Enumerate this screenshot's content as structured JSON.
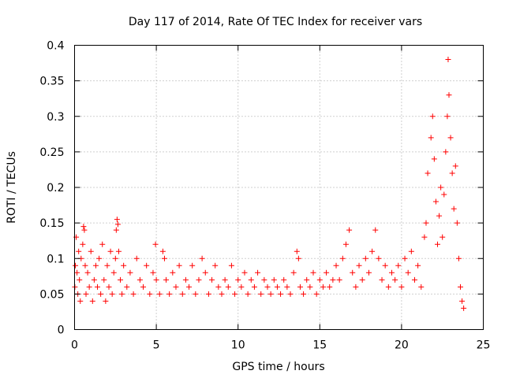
{
  "chart_data": {
    "type": "scatter",
    "title": "Day 117 of 2014, Rate Of TEC Index for receiver vars",
    "xlabel": "GPS time / hours",
    "ylabel": "ROTI / TECUs",
    "xlim": [
      0,
      25
    ],
    "ylim": [
      0,
      0.4
    ],
    "xticks": [
      0,
      5,
      10,
      15,
      20,
      25
    ],
    "xtick_labels": [
      "0",
      "5",
      "10",
      "15",
      "20",
      "25"
    ],
    "yticks": [
      0,
      0.05,
      0.1,
      0.15,
      0.2,
      0.25,
      0.3,
      0.35,
      0.4
    ],
    "ytick_labels": [
      "0",
      "0.05",
      "0.1",
      "0.15",
      "0.2",
      "0.25",
      "0.3",
      "0.35",
      "0.4"
    ],
    "grid": true,
    "marker": "+",
    "marker_color": "#ff0000",
    "series": [
      {
        "name": "ROTI",
        "points": [
          [
            0.02,
            0.06
          ],
          [
            0.05,
            0.09
          ],
          [
            0.1,
            0.13
          ],
          [
            0.15,
            0.08
          ],
          [
            0.2,
            0.05
          ],
          [
            0.25,
            0.11
          ],
          [
            0.3,
            0.07
          ],
          [
            0.35,
            0.04
          ],
          [
            0.4,
            0.1
          ],
          [
            0.5,
            0.12
          ],
          [
            0.55,
            0.145
          ],
          [
            0.6,
            0.14
          ],
          [
            0.65,
            0.09
          ],
          [
            0.7,
            0.05
          ],
          [
            0.8,
            0.08
          ],
          [
            0.9,
            0.06
          ],
          [
            1.0,
            0.11
          ],
          [
            1.1,
            0.04
          ],
          [
            1.2,
            0.07
          ],
          [
            1.3,
            0.09
          ],
          [
            1.4,
            0.06
          ],
          [
            1.5,
            0.1
          ],
          [
            1.6,
            0.05
          ],
          [
            1.7,
            0.12
          ],
          [
            1.8,
            0.07
          ],
          [
            1.9,
            0.04
          ],
          [
            2.0,
            0.09
          ],
          [
            2.1,
            0.06
          ],
          [
            2.2,
            0.11
          ],
          [
            2.3,
            0.05
          ],
          [
            2.4,
            0.08
          ],
          [
            2.5,
            0.1
          ],
          [
            2.55,
            0.14
          ],
          [
            2.6,
            0.155
          ],
          [
            2.65,
            0.148
          ],
          [
            2.7,
            0.11
          ],
          [
            2.8,
            0.07
          ],
          [
            2.9,
            0.05
          ],
          [
            3.0,
            0.09
          ],
          [
            3.2,
            0.06
          ],
          [
            3.4,
            0.08
          ],
          [
            3.6,
            0.05
          ],
          [
            3.8,
            0.1
          ],
          [
            4.0,
            0.07
          ],
          [
            4.2,
            0.06
          ],
          [
            4.4,
            0.09
          ],
          [
            4.6,
            0.05
          ],
          [
            4.8,
            0.08
          ],
          [
            4.95,
            0.12
          ],
          [
            5.0,
            0.07
          ],
          [
            5.2,
            0.05
          ],
          [
            5.4,
            0.11
          ],
          [
            5.5,
            0.1
          ],
          [
            5.6,
            0.07
          ],
          [
            5.8,
            0.05
          ],
          [
            6.0,
            0.08
          ],
          [
            6.2,
            0.06
          ],
          [
            6.4,
            0.09
          ],
          [
            6.6,
            0.05
          ],
          [
            6.8,
            0.07
          ],
          [
            7.0,
            0.06
          ],
          [
            7.2,
            0.09
          ],
          [
            7.4,
            0.05
          ],
          [
            7.6,
            0.07
          ],
          [
            7.8,
            0.1
          ],
          [
            8.0,
            0.08
          ],
          [
            8.2,
            0.05
          ],
          [
            8.4,
            0.07
          ],
          [
            8.6,
            0.09
          ],
          [
            8.8,
            0.06
          ],
          [
            9.0,
            0.05
          ],
          [
            9.2,
            0.07
          ],
          [
            9.4,
            0.06
          ],
          [
            9.6,
            0.09
          ],
          [
            9.8,
            0.05
          ],
          [
            10.0,
            0.07
          ],
          [
            10.2,
            0.06
          ],
          [
            10.4,
            0.08
          ],
          [
            10.6,
            0.05
          ],
          [
            10.8,
            0.07
          ],
          [
            11.0,
            0.06
          ],
          [
            11.2,
            0.08
          ],
          [
            11.4,
            0.05
          ],
          [
            11.6,
            0.07
          ],
          [
            11.8,
            0.06
          ],
          [
            12.0,
            0.05
          ],
          [
            12.2,
            0.07
          ],
          [
            12.4,
            0.06
          ],
          [
            12.6,
            0.05
          ],
          [
            12.8,
            0.07
          ],
          [
            13.0,
            0.06
          ],
          [
            13.2,
            0.05
          ],
          [
            13.4,
            0.08
          ],
          [
            13.6,
            0.11
          ],
          [
            13.7,
            0.1
          ],
          [
            13.8,
            0.06
          ],
          [
            14.0,
            0.05
          ],
          [
            14.2,
            0.07
          ],
          [
            14.4,
            0.06
          ],
          [
            14.6,
            0.08
          ],
          [
            14.8,
            0.05
          ],
          [
            15.0,
            0.07
          ],
          [
            15.2,
            0.06
          ],
          [
            15.4,
            0.08
          ],
          [
            15.6,
            0.06
          ],
          [
            15.8,
            0.07
          ],
          [
            16.0,
            0.09
          ],
          [
            16.2,
            0.07
          ],
          [
            16.4,
            0.1
          ],
          [
            16.6,
            0.12
          ],
          [
            16.8,
            0.14
          ],
          [
            17.0,
            0.08
          ],
          [
            17.2,
            0.06
          ],
          [
            17.4,
            0.09
          ],
          [
            17.6,
            0.07
          ],
          [
            17.8,
            0.1
          ],
          [
            18.0,
            0.08
          ],
          [
            18.2,
            0.11
          ],
          [
            18.4,
            0.14
          ],
          [
            18.6,
            0.1
          ],
          [
            18.8,
            0.07
          ],
          [
            19.0,
            0.09
          ],
          [
            19.2,
            0.06
          ],
          [
            19.4,
            0.08
          ],
          [
            19.6,
            0.07
          ],
          [
            19.8,
            0.09
          ],
          [
            20.0,
            0.06
          ],
          [
            20.2,
            0.1
          ],
          [
            20.4,
            0.08
          ],
          [
            20.6,
            0.11
          ],
          [
            20.8,
            0.07
          ],
          [
            21.0,
            0.09
          ],
          [
            21.2,
            0.06
          ],
          [
            21.4,
            0.13
          ],
          [
            21.5,
            0.15
          ],
          [
            21.6,
            0.22
          ],
          [
            21.8,
            0.27
          ],
          [
            21.9,
            0.3
          ],
          [
            22.0,
            0.24
          ],
          [
            22.1,
            0.18
          ],
          [
            22.2,
            0.12
          ],
          [
            22.3,
            0.16
          ],
          [
            22.4,
            0.2
          ],
          [
            22.5,
            0.13
          ],
          [
            22.6,
            0.19
          ],
          [
            22.7,
            0.25
          ],
          [
            22.8,
            0.3
          ],
          [
            22.85,
            0.38
          ],
          [
            22.9,
            0.33
          ],
          [
            23.0,
            0.27
          ],
          [
            23.1,
            0.22
          ],
          [
            23.2,
            0.17
          ],
          [
            23.3,
            0.23
          ],
          [
            23.4,
            0.15
          ],
          [
            23.5,
            0.1
          ],
          [
            23.6,
            0.06
          ],
          [
            23.7,
            0.04
          ],
          [
            23.8,
            0.03
          ]
        ]
      }
    ]
  }
}
